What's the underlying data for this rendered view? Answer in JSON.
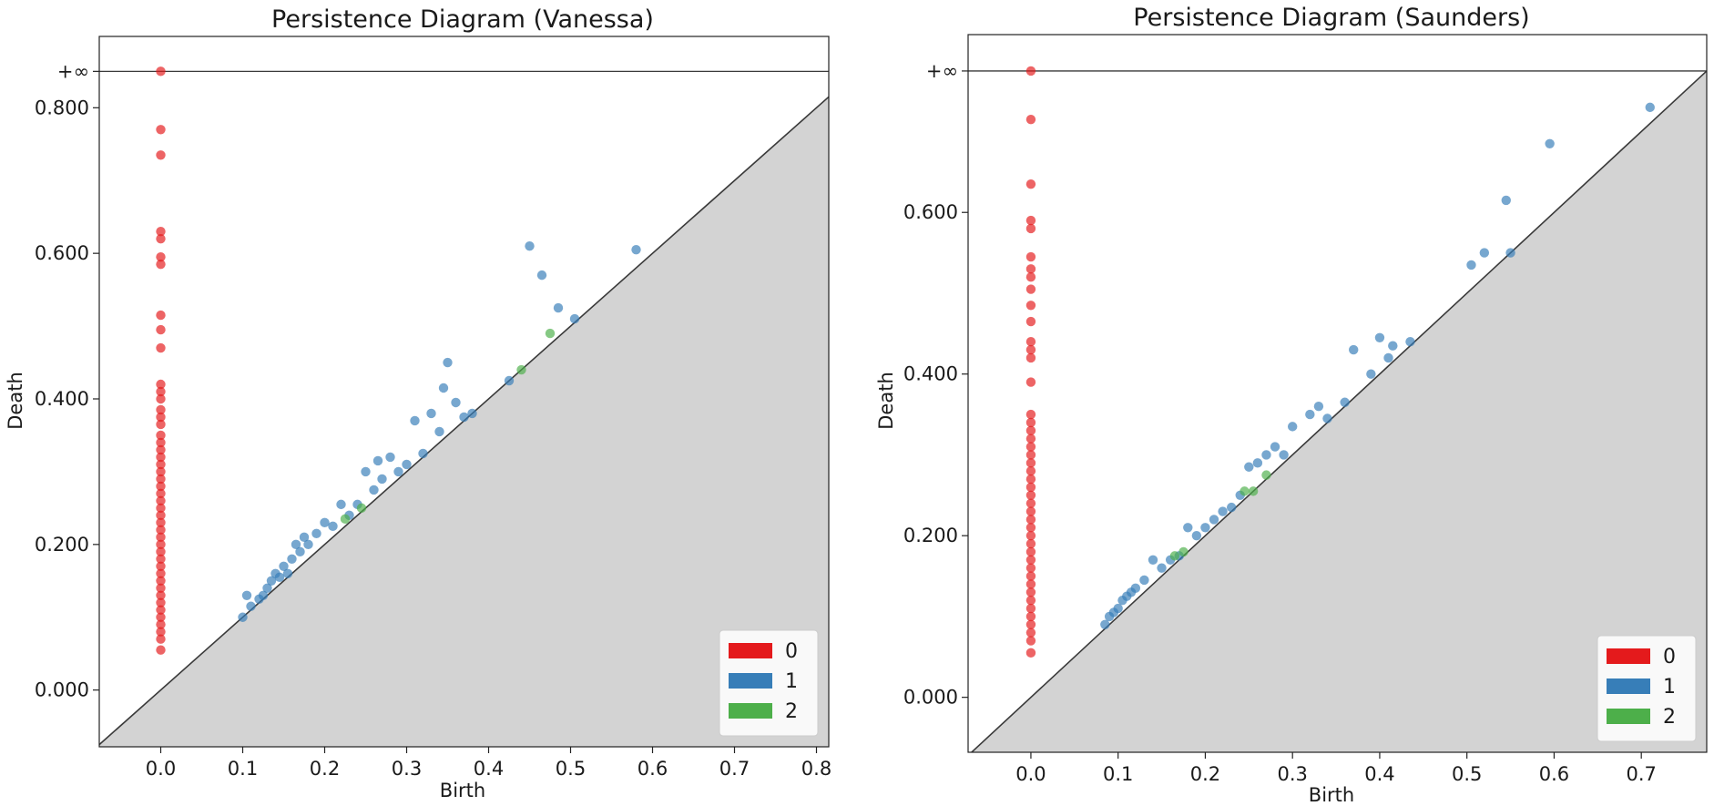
{
  "figure": {
    "background": "#ffffff",
    "diagonal_fill": "#d3d3d3"
  },
  "chart_data": [
    {
      "type": "scatter",
      "title": "Persistence Diagram (Vanessa)",
      "xlabel": "Birth",
      "ylabel": "Death",
      "xlim": [
        -0.075,
        0.815
      ],
      "ylim": [
        -0.078,
        0.898
      ],
      "inf_value": 0.85,
      "inf_label": "+∞",
      "xticks": [
        0.0,
        0.1,
        0.2,
        0.3,
        0.4,
        0.5,
        0.6,
        0.7,
        0.8
      ],
      "xtick_labels": [
        "0.0",
        "0.1",
        "0.2",
        "0.3",
        "0.4",
        "0.5",
        "0.6",
        "0.7",
        "0.8"
      ],
      "yticks": [
        0.0,
        0.2,
        0.4,
        0.6,
        0.8
      ],
      "ytick_labels": [
        "0.000",
        "0.200",
        "0.400",
        "0.600",
        "0.800"
      ],
      "legend_position": "bottom-right",
      "legend": [
        {
          "label": "0",
          "color": "#e41a1c"
        },
        {
          "label": "1",
          "color": "#377eb8"
        },
        {
          "label": "2",
          "color": "#4daf4a"
        }
      ],
      "series": [
        {
          "name": "0",
          "color": "#e41a1c",
          "points": [
            [
              0,
              0.85
            ],
            [
              0,
              0.77
            ],
            [
              0,
              0.735
            ],
            [
              0,
              0.63
            ],
            [
              0,
              0.62
            ],
            [
              0,
              0.595
            ],
            [
              0,
              0.585
            ],
            [
              0,
              0.515
            ],
            [
              0,
              0.495
            ],
            [
              0,
              0.47
            ],
            [
              0,
              0.42
            ],
            [
              0,
              0.41
            ],
            [
              0,
              0.4
            ],
            [
              0,
              0.385
            ],
            [
              0,
              0.375
            ],
            [
              0,
              0.365
            ],
            [
              0,
              0.35
            ],
            [
              0,
              0.34
            ],
            [
              0,
              0.33
            ],
            [
              0,
              0.32
            ],
            [
              0,
              0.31
            ],
            [
              0,
              0.3
            ],
            [
              0,
              0.29
            ],
            [
              0,
              0.28
            ],
            [
              0,
              0.27
            ],
            [
              0,
              0.26
            ],
            [
              0,
              0.25
            ],
            [
              0,
              0.24
            ],
            [
              0,
              0.23
            ],
            [
              0,
              0.22
            ],
            [
              0,
              0.21
            ],
            [
              0,
              0.2
            ],
            [
              0,
              0.19
            ],
            [
              0,
              0.18
            ],
            [
              0,
              0.17
            ],
            [
              0,
              0.16
            ],
            [
              0,
              0.15
            ],
            [
              0,
              0.14
            ],
            [
              0,
              0.13
            ],
            [
              0,
              0.12
            ],
            [
              0,
              0.11
            ],
            [
              0,
              0.1
            ],
            [
              0,
              0.09
            ],
            [
              0,
              0.08
            ],
            [
              0,
              0.07
            ],
            [
              0,
              0.055
            ]
          ]
        },
        {
          "name": "1",
          "color": "#377eb8",
          "points": [
            [
              0.1,
              0.1
            ],
            [
              0.105,
              0.13
            ],
            [
              0.11,
              0.115
            ],
            [
              0.12,
              0.125
            ],
            [
              0.125,
              0.13
            ],
            [
              0.13,
              0.14
            ],
            [
              0.135,
              0.15
            ],
            [
              0.14,
              0.16
            ],
            [
              0.145,
              0.155
            ],
            [
              0.15,
              0.17
            ],
            [
              0.155,
              0.16
            ],
            [
              0.16,
              0.18
            ],
            [
              0.165,
              0.2
            ],
            [
              0.17,
              0.19
            ],
            [
              0.175,
              0.21
            ],
            [
              0.18,
              0.2
            ],
            [
              0.19,
              0.215
            ],
            [
              0.2,
              0.23
            ],
            [
              0.21,
              0.225
            ],
            [
              0.22,
              0.255
            ],
            [
              0.23,
              0.24
            ],
            [
              0.24,
              0.255
            ],
            [
              0.25,
              0.3
            ],
            [
              0.26,
              0.275
            ],
            [
              0.265,
              0.315
            ],
            [
              0.27,
              0.29
            ],
            [
              0.28,
              0.32
            ],
            [
              0.29,
              0.3
            ],
            [
              0.3,
              0.31
            ],
            [
              0.31,
              0.37
            ],
            [
              0.32,
              0.325
            ],
            [
              0.33,
              0.38
            ],
            [
              0.34,
              0.355
            ],
            [
              0.345,
              0.415
            ],
            [
              0.35,
              0.45
            ],
            [
              0.36,
              0.395
            ],
            [
              0.37,
              0.375
            ],
            [
              0.38,
              0.38
            ],
            [
              0.425,
              0.425
            ],
            [
              0.45,
              0.61
            ],
            [
              0.465,
              0.57
            ],
            [
              0.485,
              0.525
            ],
            [
              0.505,
              0.51
            ],
            [
              0.58,
              0.605
            ]
          ]
        },
        {
          "name": "2",
          "color": "#4daf4a",
          "points": [
            [
              0.225,
              0.235
            ],
            [
              0.245,
              0.25
            ],
            [
              0.44,
              0.44
            ],
            [
              0.475,
              0.49
            ]
          ]
        }
      ]
    },
    {
      "type": "scatter",
      "title": "Persistence Diagram (Saunders)",
      "xlabel": "Birth",
      "ylabel": "Death",
      "xlim": [
        -0.072,
        0.775
      ],
      "ylim": [
        -0.068,
        0.82
      ],
      "inf_value": 0.775,
      "inf_label": "+∞",
      "xticks": [
        0.0,
        0.1,
        0.2,
        0.3,
        0.4,
        0.5,
        0.6,
        0.7
      ],
      "xtick_labels": [
        "0.0",
        "0.1",
        "0.2",
        "0.3",
        "0.4",
        "0.5",
        "0.6",
        "0.7"
      ],
      "yticks": [
        0.0,
        0.2,
        0.4,
        0.6
      ],
      "ytick_labels": [
        "0.000",
        "0.200",
        "0.400",
        "0.600"
      ],
      "legend_position": "bottom-right",
      "legend": [
        {
          "label": "0",
          "color": "#e41a1c"
        },
        {
          "label": "1",
          "color": "#377eb8"
        },
        {
          "label": "2",
          "color": "#4daf4a"
        }
      ],
      "series": [
        {
          "name": "0",
          "color": "#e41a1c",
          "points": [
            [
              0,
              0.775
            ],
            [
              0,
              0.715
            ],
            [
              0,
              0.635
            ],
            [
              0,
              0.59
            ],
            [
              0,
              0.58
            ],
            [
              0,
              0.545
            ],
            [
              0,
              0.53
            ],
            [
              0,
              0.52
            ],
            [
              0,
              0.505
            ],
            [
              0,
              0.485
            ],
            [
              0,
              0.465
            ],
            [
              0,
              0.44
            ],
            [
              0,
              0.43
            ],
            [
              0,
              0.42
            ],
            [
              0,
              0.39
            ],
            [
              0,
              0.35
            ],
            [
              0,
              0.34
            ],
            [
              0,
              0.33
            ],
            [
              0,
              0.32
            ],
            [
              0,
              0.31
            ],
            [
              0,
              0.3
            ],
            [
              0,
              0.29
            ],
            [
              0,
              0.28
            ],
            [
              0,
              0.27
            ],
            [
              0,
              0.26
            ],
            [
              0,
              0.25
            ],
            [
              0,
              0.24
            ],
            [
              0,
              0.23
            ],
            [
              0,
              0.22
            ],
            [
              0,
              0.21
            ],
            [
              0,
              0.2
            ],
            [
              0,
              0.19
            ],
            [
              0,
              0.18
            ],
            [
              0,
              0.17
            ],
            [
              0,
              0.16
            ],
            [
              0,
              0.15
            ],
            [
              0,
              0.14
            ],
            [
              0,
              0.13
            ],
            [
              0,
              0.12
            ],
            [
              0,
              0.11
            ],
            [
              0,
              0.1
            ],
            [
              0,
              0.09
            ],
            [
              0,
              0.08
            ],
            [
              0,
              0.07
            ],
            [
              0,
              0.055
            ]
          ]
        },
        {
          "name": "1",
          "color": "#377eb8",
          "points": [
            [
              0.085,
              0.09
            ],
            [
              0.09,
              0.1
            ],
            [
              0.095,
              0.105
            ],
            [
              0.1,
              0.11
            ],
            [
              0.105,
              0.12
            ],
            [
              0.11,
              0.125
            ],
            [
              0.115,
              0.13
            ],
            [
              0.12,
              0.135
            ],
            [
              0.13,
              0.145
            ],
            [
              0.14,
              0.17
            ],
            [
              0.15,
              0.16
            ],
            [
              0.16,
              0.17
            ],
            [
              0.17,
              0.175
            ],
            [
              0.18,
              0.21
            ],
            [
              0.19,
              0.2
            ],
            [
              0.2,
              0.21
            ],
            [
              0.21,
              0.22
            ],
            [
              0.22,
              0.23
            ],
            [
              0.23,
              0.235
            ],
            [
              0.24,
              0.25
            ],
            [
              0.25,
              0.285
            ],
            [
              0.26,
              0.29
            ],
            [
              0.27,
              0.3
            ],
            [
              0.28,
              0.31
            ],
            [
              0.29,
              0.3
            ],
            [
              0.3,
              0.335
            ],
            [
              0.32,
              0.35
            ],
            [
              0.33,
              0.36
            ],
            [
              0.34,
              0.345
            ],
            [
              0.36,
              0.365
            ],
            [
              0.37,
              0.43
            ],
            [
              0.39,
              0.4
            ],
            [
              0.4,
              0.445
            ],
            [
              0.41,
              0.42
            ],
            [
              0.415,
              0.435
            ],
            [
              0.435,
              0.44
            ],
            [
              0.505,
              0.535
            ],
            [
              0.52,
              0.55
            ],
            [
              0.545,
              0.615
            ],
            [
              0.55,
              0.55
            ],
            [
              0.595,
              0.685
            ],
            [
              0.71,
              0.73
            ]
          ]
        },
        {
          "name": "2",
          "color": "#4daf4a",
          "points": [
            [
              0.165,
              0.175
            ],
            [
              0.175,
              0.18
            ],
            [
              0.245,
              0.255
            ],
            [
              0.255,
              0.255
            ],
            [
              0.27,
              0.275
            ]
          ]
        }
      ]
    }
  ]
}
